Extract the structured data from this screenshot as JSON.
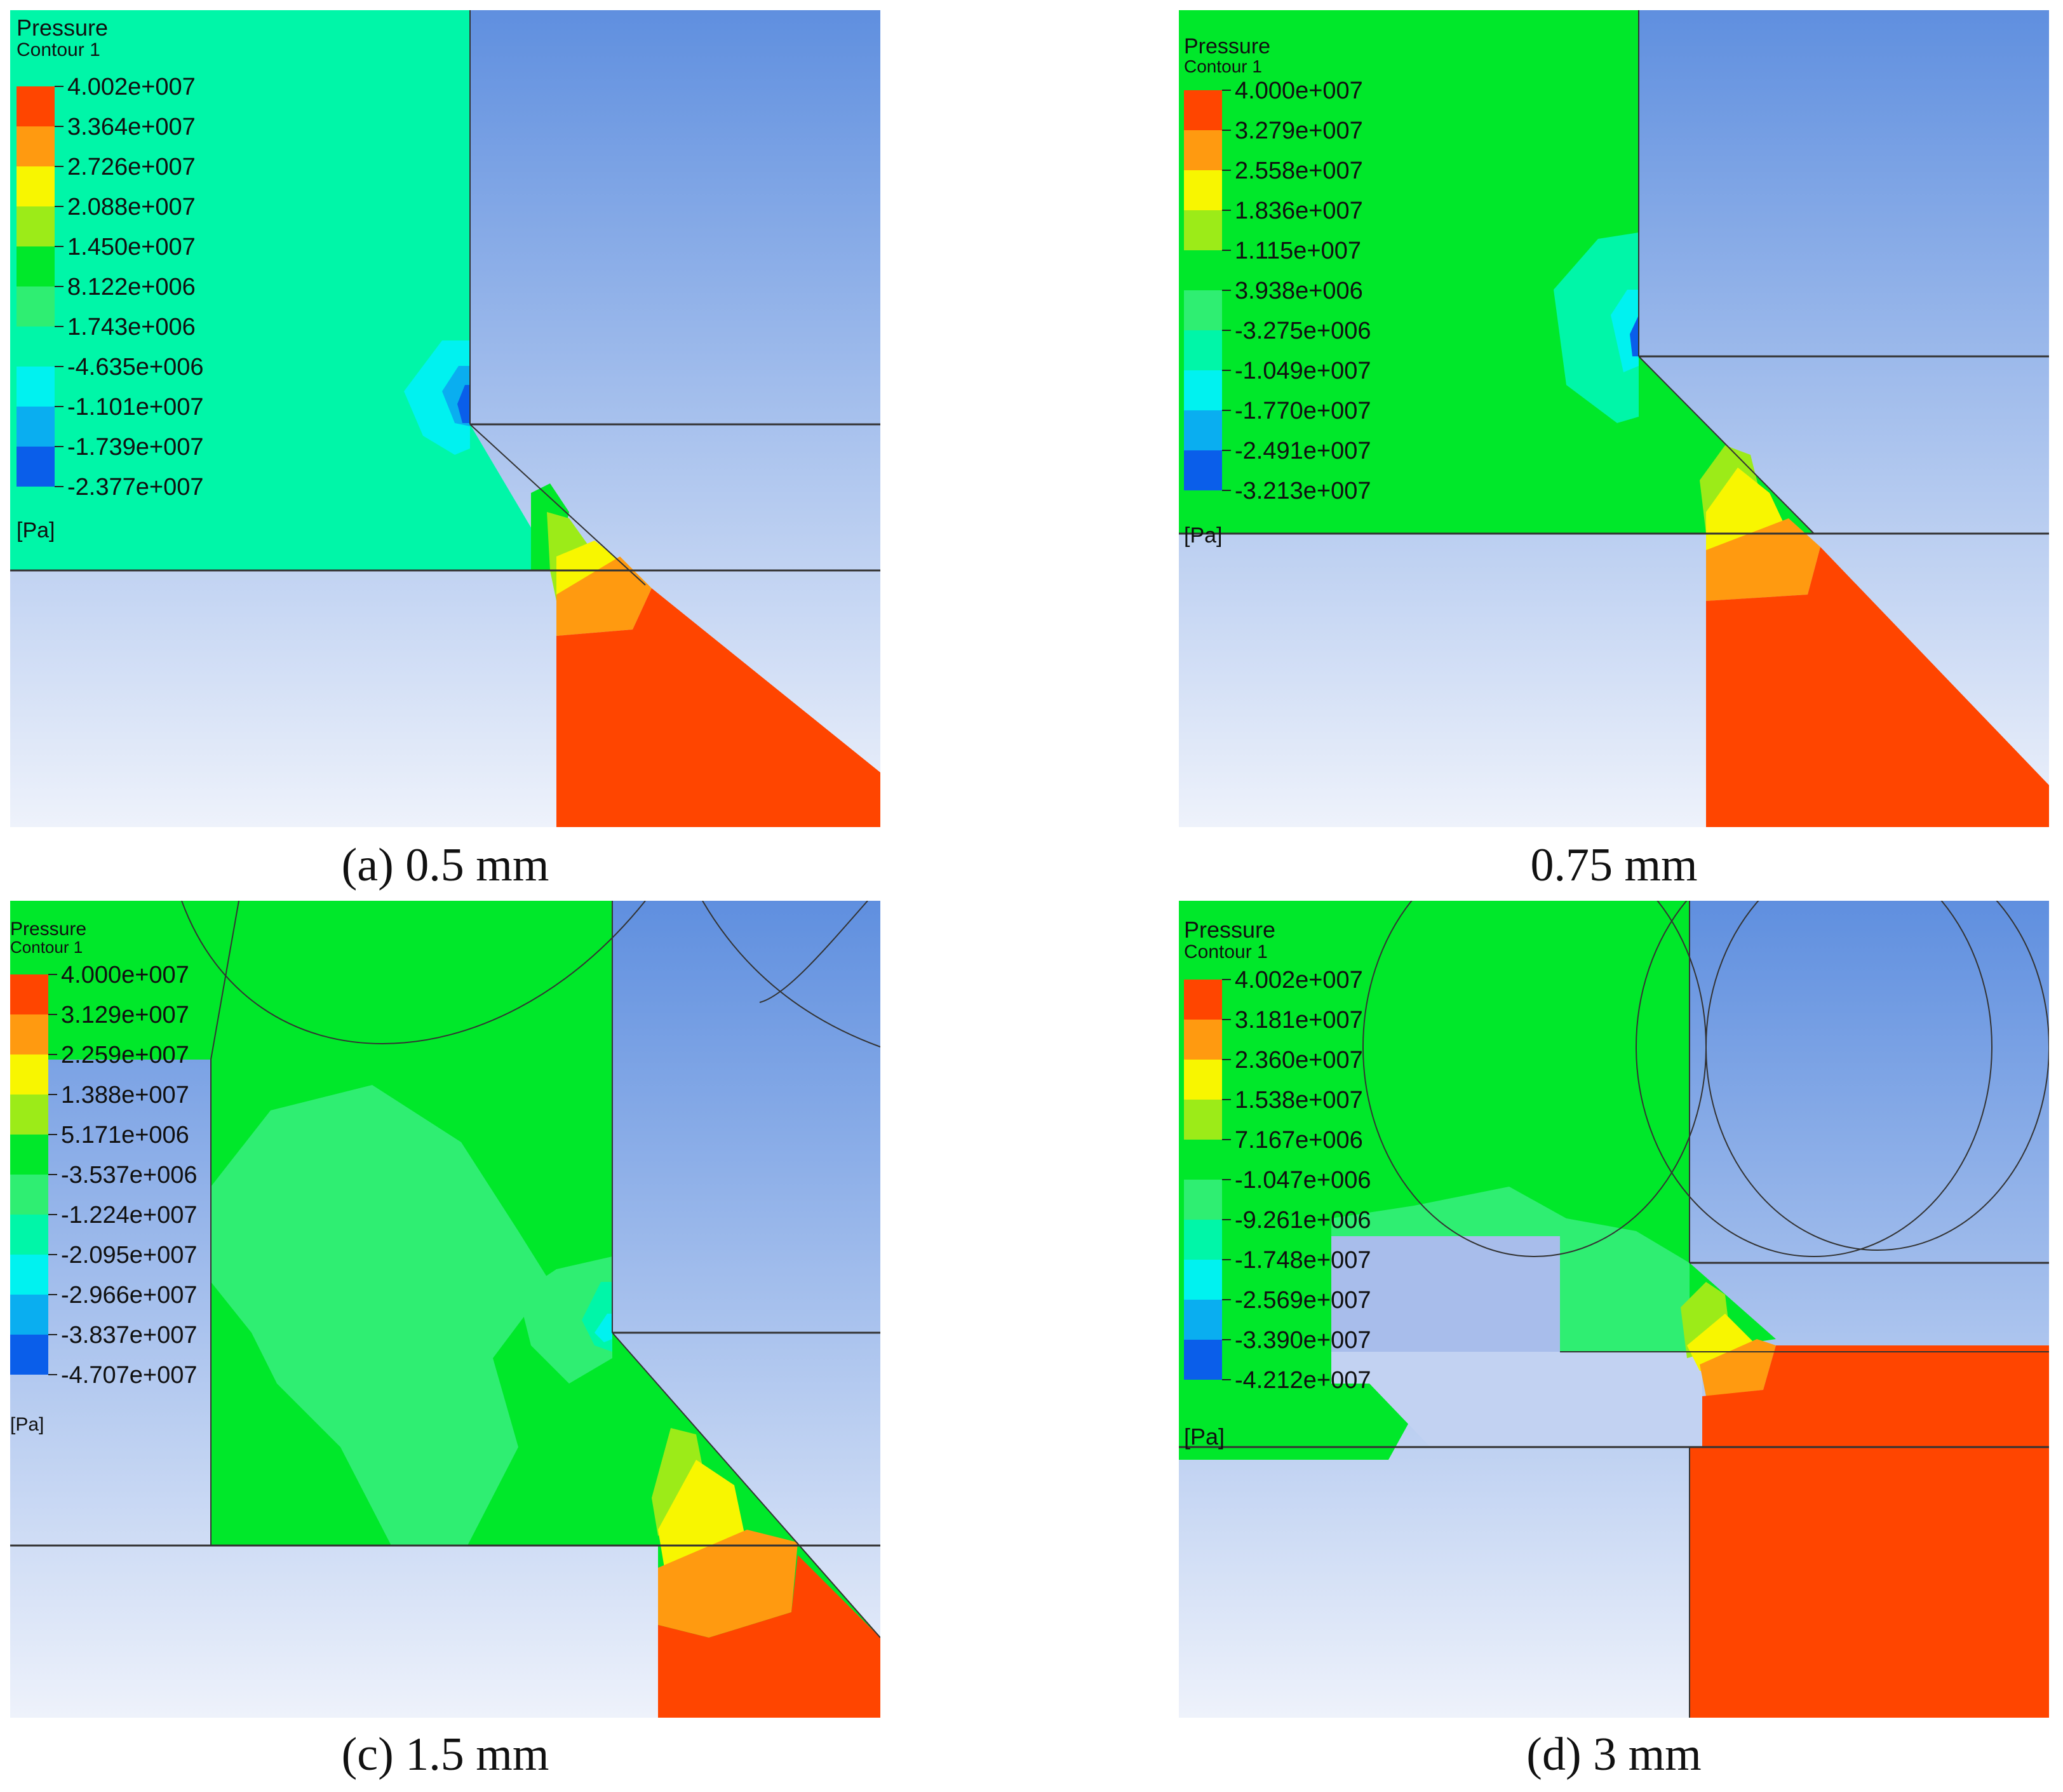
{
  "legend_common": {
    "title": "Pressure",
    "subtitle": "Contour 1",
    "unit": "[Pa]"
  },
  "colors": {
    "red": "#FF4500",
    "orange": "#FF9A10",
    "yellow": "#F8F600",
    "lime": "#9CEB18",
    "green": "#00E82A",
    "green_light": "#2FEE72",
    "aqua": "#00F6A8",
    "cyan": "#00F2F0",
    "sky": "#0AAEF0",
    "blue": "#0A5EEA",
    "navy": "#1A1ED8",
    "solid_top": "#5F8FDF",
    "solid_bottom": "#EEF2FB"
  },
  "panels": [
    {
      "id": "a",
      "caption": "(a) 0.5 mm",
      "legend_values": [
        "4.002e+007",
        "3.364e+007",
        "2.726e+007",
        "2.088e+007",
        "1.450e+007",
        "8.122e+006",
        "1.743e+006",
        "-4.635e+006",
        "-1.101e+007",
        "-1.739e+007",
        "-2.377e+007"
      ]
    },
    {
      "id": "b",
      "caption": "0.75 mm",
      "legend_values": [
        "4.000e+007",
        "3.279e+007",
        "2.558e+007",
        "1.836e+007",
        "1.115e+007",
        "3.938e+006",
        "-3.275e+006",
        "-1.049e+007",
        "-1.770e+007",
        "-2.491e+007",
        "-3.213e+007"
      ]
    },
    {
      "id": "c",
      "caption": "(c) 1.5 mm",
      "legend_values": [
        "4.000e+007",
        "3.129e+007",
        "2.259e+007",
        "1.388e+007",
        "5.171e+006",
        "-3.537e+006",
        "-1.224e+007",
        "-2.095e+007",
        "-2.966e+007",
        "-3.837e+007",
        "-4.707e+007"
      ]
    },
    {
      "id": "d",
      "caption": "(d) 3 mm",
      "legend_values": [
        "4.002e+007",
        "3.181e+007",
        "2.360e+007",
        "1.538e+007",
        "7.167e+006",
        "-1.047e+006",
        "-9.261e+006",
        "-1.748e+007",
        "-2.569e+007",
        "-3.390e+007",
        "-4.212e+007"
      ]
    }
  ]
}
